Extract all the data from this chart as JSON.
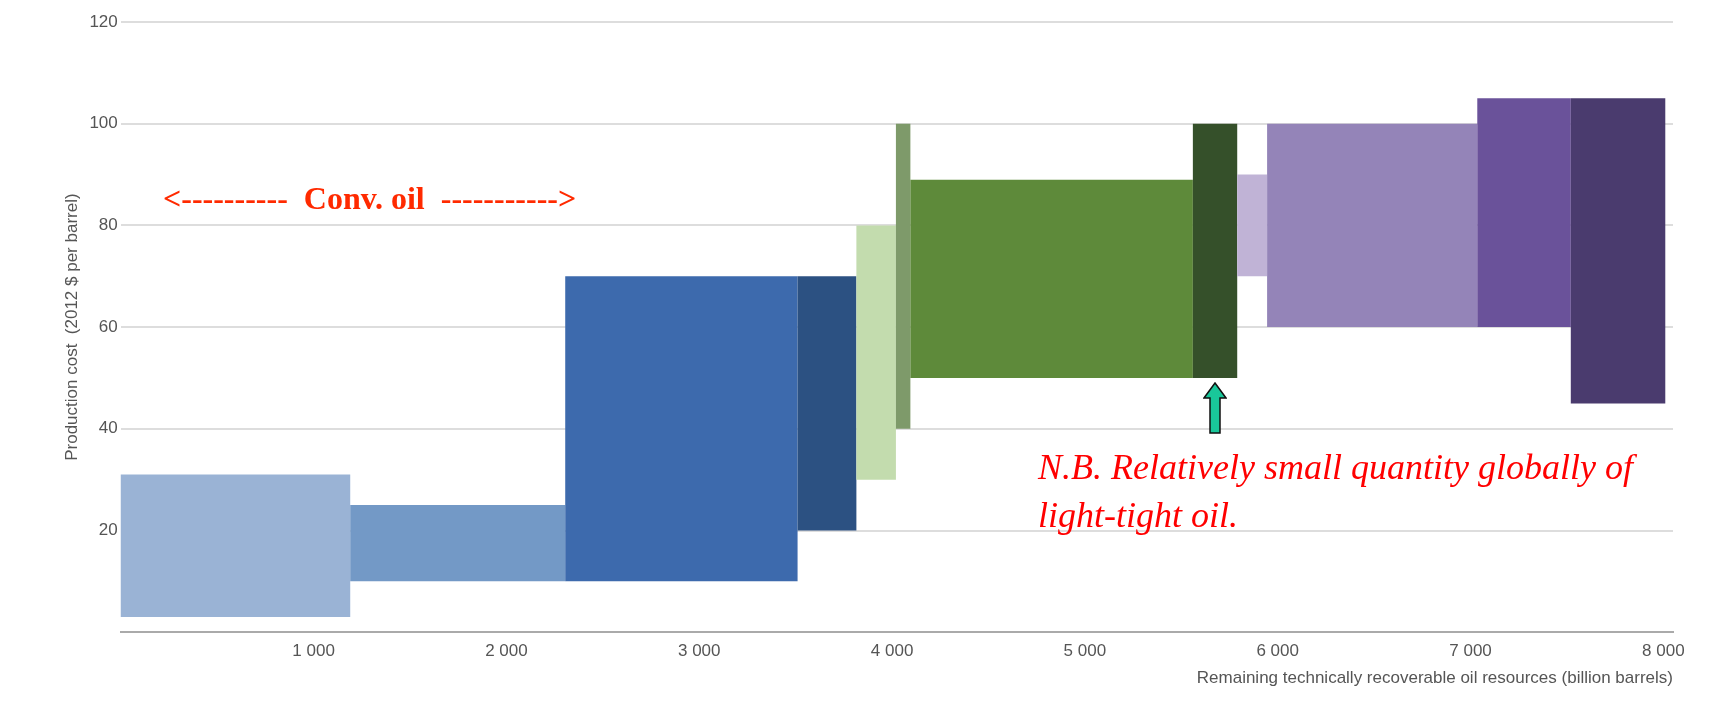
{
  "chart_data": {
    "type": "histogram",
    "bins": [
      0,
      1190,
      2305,
      3510,
      3815,
      4020,
      4095,
      5560,
      5790,
      5945,
      7035,
      7520,
      8010
    ],
    "base": [
      3,
      10,
      10,
      20,
      30,
      40,
      50,
      50,
      70,
      60,
      60,
      45
    ],
    "values": [
      28,
      15,
      60,
      50,
      50,
      60,
      39,
      50,
      20,
      40,
      45,
      60
    ],
    "colors": [
      "#9ab3d5",
      "#7399c6",
      "#3d6aad",
      "#2c5182",
      "#c3dcae",
      "#7e9a6a",
      "#5e8a3a",
      "#35502a",
      "#c0b3d6",
      "#9484b8",
      "#6a529a",
      "#4a3b6e"
    ],
    "xlim": [
      0,
      8050
    ],
    "xticks": [
      {
        "value": 1000,
        "label": "1 000"
      },
      {
        "value": 2000,
        "label": "2 000"
      },
      {
        "value": 3000,
        "label": "3 000"
      },
      {
        "value": 4000,
        "label": "4 000"
      },
      {
        "value": 5000,
        "label": "5 000"
      },
      {
        "value": 6000,
        "label": "6 000"
      },
      {
        "value": 7000,
        "label": "7 000"
      },
      {
        "value": 8000,
        "label": "8 000"
      }
    ],
    "ylim": [
      0,
      120
    ],
    "yticks": [
      20,
      40,
      60,
      80,
      100,
      120
    ],
    "grid": "y",
    "xlabel": "Remaining technically recoverable oil resources (billion barrels)",
    "ylabel": "Production cost  (2012 $ per barrel)",
    "annotations": [
      "<----------  Conv. oil  ----------->",
      "N.B. Relatively small quantity globally of light-tight oil."
    ]
  }
}
